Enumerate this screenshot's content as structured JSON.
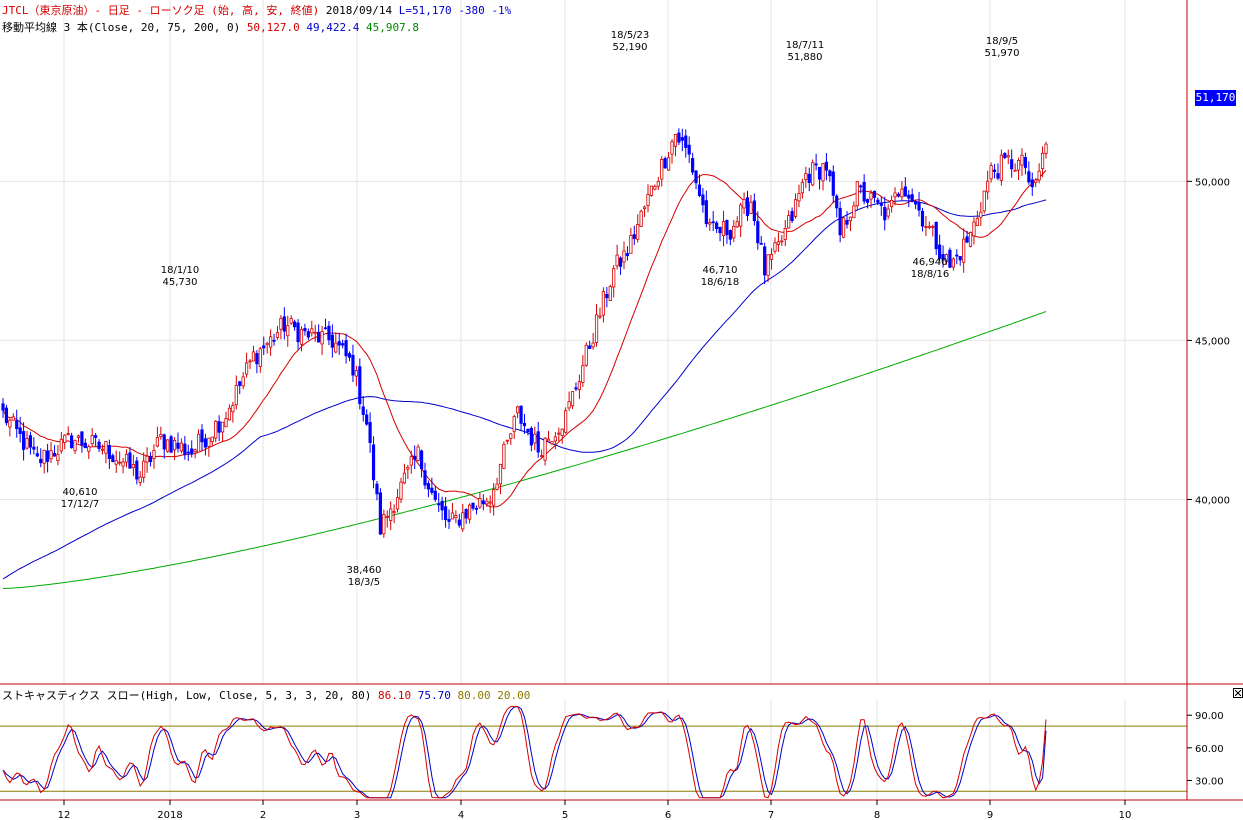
{
  "header": {
    "symbol": "JTCL（東京原油）- 日足 - ローソク足 (始, 高, 安, 終値)",
    "date": "2018/09/14",
    "last": "L=51,170",
    "change": "-380",
    "change_pct": "-1%"
  },
  "ma_header": {
    "label": "移動平均線 3 本(Close, 20, 75, 200, 0)",
    "v1": "50,127.0",
    "v2": "49,422.4",
    "v3": "45,907.8"
  },
  "stoch_header": {
    "label": "ストキャスティクス スロー(High, Low, Close, 5, 3, 3, 20, 80)",
    "v1": "86.10",
    "v2": "75.70",
    "v3": "80.00",
    "v4": "20.00"
  },
  "price_box": "51,170",
  "colors": {
    "up": "#d40000",
    "down": "#0000ff",
    "ma20": "#d40000",
    "ma75": "#0000cc",
    "ma200": "#00aa00",
    "level": "#8a7a00"
  },
  "chart_data": {
    "type": "candlestick",
    "y_axis": {
      "ticks": [
        40000,
        45000,
        50000
      ],
      "tick_labels": [
        "40,000",
        "45,000",
        "50,000"
      ],
      "range": [
        34200,
        55700
      ]
    },
    "stoch_axis": {
      "ticks": [
        30,
        60,
        90
      ],
      "tick_labels": [
        "30.00",
        "60.00",
        "90.00"
      ],
      "range": [
        12,
        104
      ],
      "levels": [
        20,
        80
      ]
    },
    "x_month_labels": [
      "12",
      "2018",
      "2",
      "3",
      "4",
      "5",
      "6",
      "7",
      "8",
      "9",
      "10"
    ],
    "ohlc_waypoints": [
      [
        0,
        42700
      ],
      [
        10,
        41200
      ],
      [
        20,
        41900
      ],
      [
        30,
        41600
      ],
      [
        40,
        40750
      ],
      [
        46,
        41900
      ],
      [
        55,
        41500
      ],
      [
        65,
        42700
      ],
      [
        73,
        44500
      ],
      [
        78,
        45000
      ],
      [
        82,
        45500
      ],
      [
        88,
        45200
      ],
      [
        96,
        45000
      ],
      [
        102,
        44200
      ],
      [
        106,
        42400
      ],
      [
        110,
        39100
      ],
      [
        116,
        40400
      ],
      [
        121,
        41400
      ],
      [
        126,
        39900
      ],
      [
        130,
        39200
      ],
      [
        136,
        39700
      ],
      [
        142,
        40100
      ],
      [
        150,
        42700
      ],
      [
        156,
        41600
      ],
      [
        164,
        42600
      ],
      [
        172,
        45200
      ],
      [
        178,
        47200
      ],
      [
        182,
        47800
      ],
      [
        186,
        48900
      ],
      [
        190,
        50000
      ],
      [
        196,
        51500
      ],
      [
        200,
        50800
      ],
      [
        206,
        48400
      ],
      [
        212,
        48500
      ],
      [
        218,
        49400
      ],
      [
        222,
        47200
      ],
      [
        226,
        47900
      ],
      [
        230,
        48900
      ],
      [
        234,
        50200
      ],
      [
        240,
        50500
      ],
      [
        244,
        48300
      ],
      [
        249,
        49700
      ],
      [
        254,
        49300
      ],
      [
        258,
        48900
      ],
      [
        262,
        50000
      ],
      [
        266,
        49300
      ],
      [
        272,
        48100
      ],
      [
        276,
        47300
      ],
      [
        282,
        48300
      ],
      [
        288,
        50300
      ],
      [
        293,
        50600
      ],
      [
        298,
        50500
      ],
      [
        300,
        49500
      ],
      [
        304,
        51170
      ]
    ],
    "candles": {
      "count": 305,
      "last_close": 51170
    },
    "annotations": [
      {
        "date": "17/12/7",
        "value": "40,610",
        "kind": "low"
      },
      {
        "date": "18/1/10",
        "value": "45,730",
        "kind": "high"
      },
      {
        "date": "18/3/5",
        "value": "38,460",
        "kind": "low"
      },
      {
        "date": "18/5/23",
        "value": "52,190",
        "kind": "high"
      },
      {
        "date": "18/6/18",
        "value": "46,710",
        "kind": "low"
      },
      {
        "date": "18/7/11",
        "value": "51,880",
        "kind": "high"
      },
      {
        "date": "18/8/16",
        "value": "46,940",
        "kind": "low"
      },
      {
        "date": "18/9/5",
        "value": "51,970",
        "kind": "high"
      }
    ],
    "series": [
      {
        "name": "20",
        "last": 50127.0
      },
      {
        "name": "75",
        "last": 49422.4
      },
      {
        "name": "200",
        "last": 45907.8
      }
    ],
    "stoch_last": {
      "k": 86.1,
      "d": 75.7
    }
  }
}
